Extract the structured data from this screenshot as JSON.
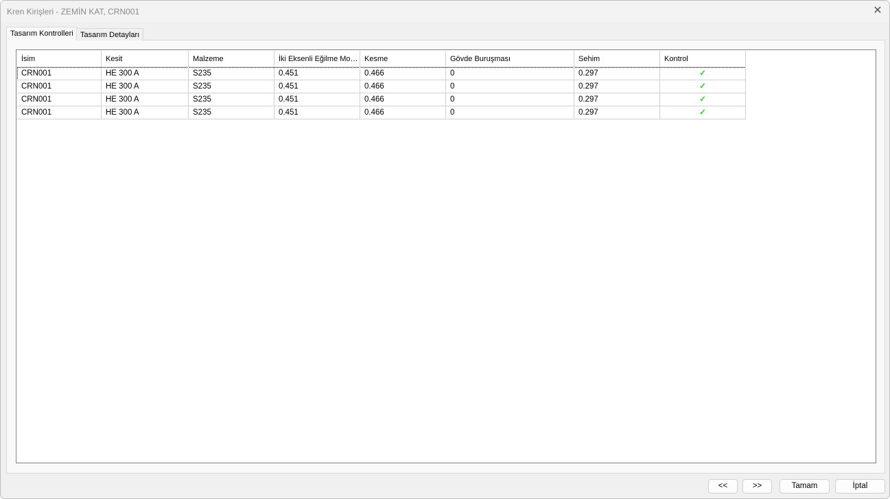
{
  "window": {
    "title": "Kren Kirişleri - ZEMİN KAT, CRN001",
    "close_icon": "close-icon"
  },
  "tabs": [
    {
      "label": "Tasarım Kontrolleri",
      "active": true
    },
    {
      "label": "Tasarım Detayları",
      "active": false
    }
  ],
  "table": {
    "columns": [
      "İsim",
      "Kesit",
      "Malzeme",
      "İki Eksenli Eğilme Mo…",
      "Kesme",
      "Gövde Buruşması",
      "Sehim",
      "Kontrol"
    ],
    "rows": [
      [
        "CRN001",
        "HE 300 A",
        "S235",
        "0.451",
        "0.466",
        "0",
        "0.297",
        "✓"
      ],
      [
        "CRN001",
        "HE 300 A",
        "S235",
        "0.451",
        "0.466",
        "0",
        "0.297",
        "✓"
      ],
      [
        "CRN001",
        "HE 300 A",
        "S235",
        "0.451",
        "0.466",
        "0",
        "0.297",
        "✓"
      ],
      [
        "CRN001",
        "HE 300 A",
        "S235",
        "0.451",
        "0.466",
        "0",
        "0.297",
        "✓"
      ]
    ],
    "check_color": "#1ed91e"
  },
  "buttons": {
    "prev": "<<",
    "next": ">>",
    "ok": "Tamam",
    "cancel": "İptal"
  }
}
